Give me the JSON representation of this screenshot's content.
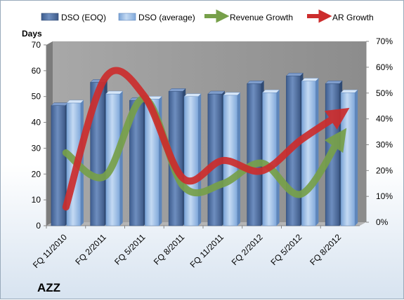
{
  "chart_data": {
    "type": "bar",
    "categories": [
      "FQ 11/2010",
      "FQ 2/2011",
      "FQ 5/2011",
      "FQ 8/2011",
      "FQ 11/2011",
      "FQ 2/2012",
      "FQ 5/2012",
      "FQ 8/2012"
    ],
    "ylabel": "Days",
    "ylim": [
      0,
      70
    ],
    "yticks": [
      0,
      10,
      20,
      30,
      40,
      50,
      60,
      70
    ],
    "y2lim": [
      0,
      0.7
    ],
    "y2ticks": [
      "0%",
      "10%",
      "20%",
      "30%",
      "40%",
      "50%",
      "60%",
      "70%"
    ],
    "legend_position": "top",
    "grid": false,
    "ticker": "AZZ",
    "series": [
      {
        "name": "DSO (EOQ)",
        "kind": "bar",
        "color": "#4f6fa0",
        "values": [
          46.5,
          55.5,
          48.5,
          52,
          51,
          55,
          58,
          55
        ]
      },
      {
        "name": "DSO (average)",
        "kind": "bar",
        "color": "#8fb4e3",
        "values": [
          47.5,
          51,
          49,
          50,
          50.5,
          51.5,
          56,
          51.5
        ]
      },
      {
        "name": "Revenue Growth",
        "kind": "line",
        "axis": "right",
        "color": "#77a04a",
        "values": [
          0.27,
          0.18,
          0.48,
          0.14,
          0.15,
          0.23,
          0.11,
          0.33
        ]
      },
      {
        "name": "AR Growth",
        "kind": "line",
        "axis": "right",
        "color": "#cc2d2d",
        "values": [
          0.06,
          0.56,
          0.49,
          0.17,
          0.24,
          0.2,
          0.32,
          0.42
        ]
      }
    ]
  }
}
